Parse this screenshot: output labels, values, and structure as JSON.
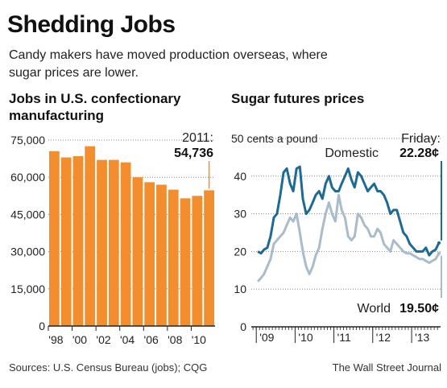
{
  "header": {
    "title": "Shedding Jobs",
    "subtitle": "Candy makers have moved production overseas, where sugar prices are lower."
  },
  "footer": {
    "sources": "Sources: U.S. Census Bureau (jobs); CQG",
    "credit": "The Wall Street Journal"
  },
  "colors": {
    "bar": "#f28e2e",
    "domestic": "#1d6a94",
    "world": "#a9bccb",
    "axis": "#222222",
    "grid": "#888888"
  },
  "chart_data": [
    {
      "type": "bar",
      "title": "Jobs in U.S. confectionary manufacturing",
      "ylim": [
        0,
        75000
      ],
      "yticks": [
        0,
        15000,
        30000,
        45000,
        60000,
        75000
      ],
      "ytick_labels": [
        "0",
        "15,000",
        "30,000",
        "45,000",
        "60,000",
        "75,000"
      ],
      "categories": [
        "1998",
        "1999",
        "2000",
        "2001",
        "2002",
        "2003",
        "2004",
        "2005",
        "2006",
        "2007",
        "2008",
        "2009",
        "2010",
        "2011"
      ],
      "xtick_labels": [
        "'98",
        "'00",
        "'02",
        "'04",
        "'06",
        "'08",
        "'10"
      ],
      "values": [
        70500,
        68000,
        68500,
        72500,
        67000,
        67000,
        66000,
        60000,
        58000,
        57000,
        55000,
        51500,
        52500,
        54736
      ],
      "annotation": {
        "label": "2011:",
        "value": "54,736"
      },
      "grid": "horizontal dotted"
    },
    {
      "type": "line",
      "title": "Sugar futures prices",
      "ylabel": "50 cents a pound",
      "ylim": [
        0,
        50
      ],
      "yticks": [
        0,
        10,
        20,
        30,
        40,
        50
      ],
      "ytick_labels": [
        "0",
        "10",
        "20",
        "30",
        "40"
      ],
      "xtick_labels": [
        "'09",
        "'10",
        "'11",
        "'12",
        "'13"
      ],
      "annotations": {
        "friday": "Friday:",
        "domestic_label": "Domestic",
        "domestic_value": "22.28¢",
        "world_label": "World",
        "world_value": "19.50¢"
      },
      "series": [
        {
          "name": "Domestic",
          "x": [
            "2009-01",
            "2009-02",
            "2009-03",
            "2009-04",
            "2009-05",
            "2009-06",
            "2009-07",
            "2009-08",
            "2009-09",
            "2009-10",
            "2009-11",
            "2009-12",
            "2010-01",
            "2010-02",
            "2010-03",
            "2010-04",
            "2010-05",
            "2010-06",
            "2010-07",
            "2010-08",
            "2010-09",
            "2010-10",
            "2010-11",
            "2010-12",
            "2011-01",
            "2011-02",
            "2011-03",
            "2011-04",
            "2011-05",
            "2011-06",
            "2011-07",
            "2011-08",
            "2011-09",
            "2011-10",
            "2011-11",
            "2011-12",
            "2012-01",
            "2012-02",
            "2012-03",
            "2012-04",
            "2012-05",
            "2012-06",
            "2012-07",
            "2012-08",
            "2012-09",
            "2012-10",
            "2012-11",
            "2012-12",
            "2013-01",
            "2013-02",
            "2013-03",
            "2013-04",
            "2013-05",
            "2013-06",
            "2013-07",
            "2013-08",
            "2013-09"
          ],
          "values": [
            20,
            19.5,
            20.5,
            21,
            24,
            29,
            30,
            35,
            41,
            42,
            38,
            36,
            42,
            42.5,
            34,
            30,
            31,
            33,
            35,
            36,
            34,
            38,
            40,
            37,
            36,
            36,
            38,
            40,
            42,
            39,
            37,
            41,
            40,
            38,
            36,
            37,
            38,
            36,
            36,
            35,
            33,
            30,
            31,
            31,
            28,
            25,
            24,
            22,
            21,
            20,
            20,
            20,
            21,
            19,
            20,
            20.5,
            22.28
          ]
        },
        {
          "name": "World",
          "x": [
            "2009-01",
            "2009-02",
            "2009-03",
            "2009-04",
            "2009-05",
            "2009-06",
            "2009-07",
            "2009-08",
            "2009-09",
            "2009-10",
            "2009-11",
            "2009-12",
            "2010-01",
            "2010-02",
            "2010-03",
            "2010-04",
            "2010-05",
            "2010-06",
            "2010-07",
            "2010-08",
            "2010-09",
            "2010-10",
            "2010-11",
            "2010-12",
            "2011-01",
            "2011-02",
            "2011-03",
            "2011-04",
            "2011-05",
            "2011-06",
            "2011-07",
            "2011-08",
            "2011-09",
            "2011-10",
            "2011-11",
            "2011-12",
            "2012-01",
            "2012-02",
            "2012-03",
            "2012-04",
            "2012-05",
            "2012-06",
            "2012-07",
            "2012-08",
            "2012-09",
            "2012-10",
            "2012-11",
            "2012-12",
            "2013-01",
            "2013-02",
            "2013-03",
            "2013-04",
            "2013-05",
            "2013-06",
            "2013-07",
            "2013-08",
            "2013-09"
          ],
          "values": [
            12,
            13,
            14,
            16,
            18,
            22,
            23,
            24,
            25,
            27,
            29,
            28,
            30,
            25,
            20,
            16,
            14,
            16,
            19,
            21,
            26,
            30,
            33,
            30,
            28,
            35,
            31,
            29,
            24,
            23,
            24,
            30,
            29,
            27,
            26,
            24,
            24,
            26,
            25,
            22,
            21,
            20,
            23,
            22,
            21,
            20,
            19.5,
            19.5,
            19,
            18.5,
            18,
            18,
            17.5,
            17,
            17.5,
            18,
            19.5
          ]
        }
      ]
    }
  ]
}
